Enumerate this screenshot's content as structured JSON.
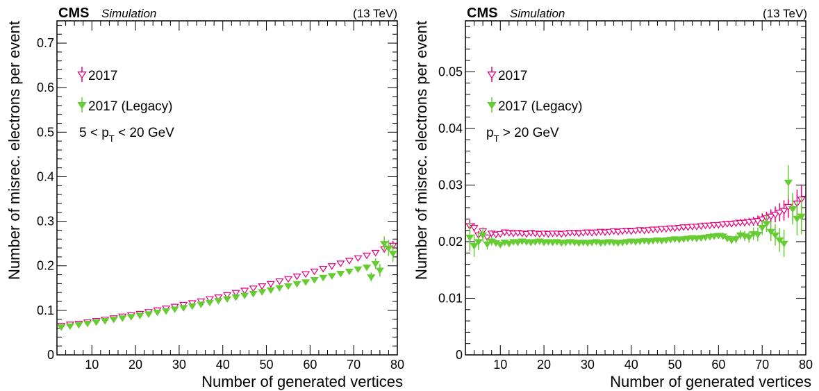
{
  "chart_data": [
    {
      "type": "scatter",
      "experiment": "CMS",
      "label": "Simulation",
      "energy": "(13 TeV)",
      "xlabel": "Number of generated vertices",
      "ylabel": "Number of misrec. electrons per event",
      "xlim": [
        2,
        80
      ],
      "ylim": [
        0,
        0.75
      ],
      "xticks": [
        10,
        20,
        30,
        40,
        50,
        60,
        70,
        80
      ],
      "yticks": [
        0,
        0.1,
        0.2,
        0.3,
        0.4,
        0.5,
        0.6,
        0.7
      ],
      "ytick_labels": [
        "0",
        "0.1",
        "0.2",
        "0.3",
        "0.4",
        "0.5",
        "0.6",
        "0.7"
      ],
      "region_label": {
        "pre": "5 < p",
        "sub": "T",
        "post": " < 20 GeV"
      },
      "legend": [
        "2017",
        "2017 (Legacy)"
      ],
      "series": [
        {
          "name": "2017",
          "marker": "open-triangle-down",
          "color": "#e6007e",
          "x": [
            3,
            5,
            7,
            9,
            11,
            13,
            15,
            17,
            19,
            21,
            23,
            25,
            27,
            29,
            31,
            33,
            35,
            37,
            39,
            41,
            43,
            45,
            47,
            49,
            51,
            53,
            55,
            57,
            59,
            61,
            63,
            65,
            67,
            69,
            71,
            73,
            75,
            77,
            79
          ],
          "y": [
            0.066,
            0.069,
            0.071,
            0.074,
            0.077,
            0.08,
            0.083,
            0.087,
            0.09,
            0.093,
            0.097,
            0.101,
            0.105,
            0.109,
            0.113,
            0.117,
            0.121,
            0.126,
            0.13,
            0.135,
            0.14,
            0.145,
            0.15,
            0.155,
            0.16,
            0.166,
            0.171,
            0.177,
            0.182,
            0.188,
            0.194,
            0.2,
            0.206,
            0.212,
            0.218,
            0.224,
            0.23,
            0.238,
            0.246
          ],
          "err": [
            0.002,
            0.001,
            0.001,
            0.001,
            0.001,
            0.001,
            0.001,
            0.001,
            0.001,
            0.001,
            0.001,
            0.001,
            0.001,
            0.001,
            0.001,
            0.001,
            0.001,
            0.001,
            0.001,
            0.001,
            0.001,
            0.001,
            0.001,
            0.001,
            0.001,
            0.001,
            0.001,
            0.001,
            0.001,
            0.002,
            0.002,
            0.002,
            0.002,
            0.003,
            0.003,
            0.004,
            0.005,
            0.007,
            0.01
          ]
        },
        {
          "name": "2017 (Legacy)",
          "marker": "filled-triangle-down",
          "color": "#66cc33",
          "x": [
            3,
            5,
            7,
            9,
            11,
            13,
            15,
            17,
            19,
            21,
            23,
            25,
            27,
            29,
            31,
            33,
            35,
            37,
            39,
            41,
            43,
            45,
            47,
            49,
            51,
            53,
            55,
            57,
            59,
            61,
            63,
            65,
            67,
            69,
            71,
            73,
            74,
            75,
            76,
            77,
            78,
            79
          ],
          "y": [
            0.063,
            0.065,
            0.068,
            0.071,
            0.074,
            0.077,
            0.08,
            0.083,
            0.086,
            0.089,
            0.092,
            0.096,
            0.099,
            0.103,
            0.106,
            0.11,
            0.114,
            0.118,
            0.122,
            0.126,
            0.13,
            0.134,
            0.138,
            0.142,
            0.146,
            0.151,
            0.155,
            0.16,
            0.164,
            0.169,
            0.174,
            0.178,
            0.183,
            0.188,
            0.193,
            0.197,
            0.175,
            0.205,
            0.19,
            0.25,
            0.24,
            0.228
          ],
          "err": [
            0.003,
            0.002,
            0.002,
            0.001,
            0.001,
            0.001,
            0.001,
            0.001,
            0.001,
            0.001,
            0.001,
            0.001,
            0.001,
            0.001,
            0.001,
            0.001,
            0.001,
            0.001,
            0.001,
            0.001,
            0.001,
            0.001,
            0.001,
            0.001,
            0.001,
            0.002,
            0.002,
            0.002,
            0.002,
            0.002,
            0.003,
            0.003,
            0.003,
            0.004,
            0.005,
            0.006,
            0.01,
            0.012,
            0.014,
            0.016,
            0.018,
            0.02
          ]
        }
      ]
    },
    {
      "type": "scatter",
      "experiment": "CMS",
      "label": "Simulation",
      "energy": "(13 TeV)",
      "xlabel": "Number of generated vertices",
      "ylabel": "Number of misrec. electrons per event",
      "xlim": [
        2,
        80
      ],
      "ylim": [
        0,
        0.059
      ],
      "xticks": [
        10,
        20,
        30,
        40,
        50,
        60,
        70,
        80
      ],
      "yticks": [
        0,
        0.01,
        0.02,
        0.03,
        0.04,
        0.05
      ],
      "ytick_labels": [
        "0",
        "0.01",
        "0.02",
        "0.03",
        "0.04",
        "0.05"
      ],
      "region_label": {
        "pre": "p",
        "sub": "T",
        "post": " > 20 GeV"
      },
      "legend": [
        "2017",
        "2017 (Legacy)"
      ],
      "series": [
        {
          "name": "2017",
          "marker": "open-triangle-down",
          "color": "#e6007e",
          "x": [
            3,
            4,
            5,
            6,
            7,
            8,
            9,
            10,
            11,
            12,
            13,
            14,
            15,
            16,
            17,
            18,
            19,
            20,
            21,
            22,
            23,
            24,
            25,
            26,
            27,
            28,
            29,
            30,
            31,
            32,
            33,
            34,
            35,
            36,
            37,
            38,
            39,
            40,
            41,
            42,
            43,
            44,
            45,
            46,
            47,
            48,
            49,
            50,
            51,
            52,
            53,
            54,
            55,
            56,
            57,
            58,
            59,
            60,
            61,
            62,
            63,
            64,
            65,
            66,
            67,
            68,
            69,
            70,
            71,
            72,
            73,
            74,
            75,
            76,
            77,
            78,
            79
          ],
          "y": [
            0.0228,
            0.0225,
            0.0212,
            0.0219,
            0.0208,
            0.0215,
            0.0213,
            0.0214,
            0.0217,
            0.0216,
            0.0215,
            0.0216,
            0.0215,
            0.0214,
            0.0216,
            0.0215,
            0.0214,
            0.0215,
            0.0214,
            0.0215,
            0.0215,
            0.0214,
            0.0215,
            0.0216,
            0.0216,
            0.0215,
            0.0216,
            0.0217,
            0.0216,
            0.0217,
            0.0218,
            0.0217,
            0.0218,
            0.0219,
            0.0218,
            0.0219,
            0.022,
            0.0219,
            0.022,
            0.0221,
            0.022,
            0.0221,
            0.0222,
            0.0222,
            0.0223,
            0.0223,
            0.0224,
            0.0224,
            0.0225,
            0.0226,
            0.0226,
            0.0227,
            0.0227,
            0.0228,
            0.0229,
            0.0229,
            0.023,
            0.023,
            0.0231,
            0.0232,
            0.0232,
            0.0233,
            0.0234,
            0.0234,
            0.0235,
            0.0236,
            0.0237,
            0.024,
            0.0242,
            0.0245,
            0.0248,
            0.0252,
            0.0255,
            0.0262,
            0.0258,
            0.0268,
            0.0275
          ],
          "err": [
            0.001,
            0.0008,
            0.0007,
            0.0006,
            0.0005,
            0.0005,
            0.0004,
            0.0004,
            0.0003,
            0.0003,
            0.0003,
            0.0003,
            0.0003,
            0.0003,
            0.0003,
            0.0003,
            0.0003,
            0.0003,
            0.0003,
            0.0003,
            0.0003,
            0.0003,
            0.0003,
            0.0003,
            0.0003,
            0.0003,
            0.0003,
            0.0003,
            0.0003,
            0.0003,
            0.0003,
            0.0003,
            0.0003,
            0.0003,
            0.0003,
            0.0003,
            0.0003,
            0.0003,
            0.0003,
            0.0003,
            0.0003,
            0.0003,
            0.0003,
            0.0003,
            0.0003,
            0.0003,
            0.0003,
            0.0003,
            0.0003,
            0.0003,
            0.0003,
            0.0003,
            0.0003,
            0.0003,
            0.0004,
            0.0004,
            0.0004,
            0.0004,
            0.0005,
            0.0005,
            0.0005,
            0.0006,
            0.0006,
            0.0007,
            0.0007,
            0.0008,
            0.0009,
            0.001,
            0.0011,
            0.0012,
            0.0014,
            0.0016,
            0.0018,
            0.002,
            0.0022,
            0.0024,
            0.0026
          ]
        },
        {
          "name": "2017 (Legacy)",
          "marker": "filled-triangle-down",
          "color": "#66cc33",
          "x": [
            3,
            4,
            5,
            6,
            7,
            8,
            9,
            10,
            11,
            12,
            13,
            14,
            15,
            16,
            17,
            18,
            19,
            20,
            21,
            22,
            23,
            24,
            25,
            26,
            27,
            28,
            29,
            30,
            31,
            32,
            33,
            34,
            35,
            36,
            37,
            38,
            39,
            40,
            41,
            42,
            43,
            44,
            45,
            46,
            47,
            48,
            49,
            50,
            51,
            52,
            53,
            54,
            55,
            56,
            57,
            58,
            59,
            60,
            61,
            62,
            63,
            64,
            65,
            66,
            67,
            68,
            69,
            70,
            71,
            72,
            73,
            74,
            75,
            76,
            77,
            78,
            79
          ],
          "y": [
            0.0208,
            0.0193,
            0.02,
            0.0212,
            0.0196,
            0.0201,
            0.0198,
            0.0195,
            0.0199,
            0.0197,
            0.02,
            0.0199,
            0.0201,
            0.02,
            0.0199,
            0.02,
            0.0201,
            0.0199,
            0.02,
            0.0199,
            0.02,
            0.0198,
            0.0199,
            0.02,
            0.0199,
            0.0198,
            0.0199,
            0.0198,
            0.0199,
            0.02,
            0.0198,
            0.0199,
            0.02,
            0.0199,
            0.0198,
            0.0199,
            0.02,
            0.0201,
            0.02,
            0.0201,
            0.0202,
            0.0201,
            0.0202,
            0.0203,
            0.0202,
            0.0203,
            0.0204,
            0.0205,
            0.0204,
            0.0205,
            0.0206,
            0.0207,
            0.0206,
            0.0207,
            0.0208,
            0.0209,
            0.021,
            0.0211,
            0.021,
            0.0206,
            0.0203,
            0.0205,
            0.0212,
            0.021,
            0.0208,
            0.0214,
            0.0213,
            0.0225,
            0.0232,
            0.0218,
            0.0212,
            0.0203,
            0.0197,
            0.0305,
            0.0258,
            0.0241,
            0.0245
          ],
          "err": [
            0.0025,
            0.002,
            0.0015,
            0.0012,
            0.001,
            0.0008,
            0.0006,
            0.0005,
            0.0004,
            0.0004,
            0.0003,
            0.0003,
            0.0003,
            0.0003,
            0.0003,
            0.0003,
            0.0003,
            0.0003,
            0.0003,
            0.0003,
            0.0003,
            0.0003,
            0.0003,
            0.0003,
            0.0003,
            0.0003,
            0.0003,
            0.0003,
            0.0003,
            0.0003,
            0.0003,
            0.0003,
            0.0003,
            0.0003,
            0.0003,
            0.0003,
            0.0003,
            0.0003,
            0.0003,
            0.0003,
            0.0003,
            0.0003,
            0.0003,
            0.0003,
            0.0003,
            0.0003,
            0.0003,
            0.0003,
            0.0003,
            0.0003,
            0.0003,
            0.0004,
            0.0004,
            0.0004,
            0.0004,
            0.0005,
            0.0005,
            0.0005,
            0.0006,
            0.0006,
            0.0007,
            0.0008,
            0.0008,
            0.0009,
            0.001,
            0.0011,
            0.0012,
            0.0013,
            0.0015,
            0.0017,
            0.0019,
            0.0021,
            0.0024,
            0.003,
            0.0028,
            0.003,
            0.0032
          ]
        }
      ]
    }
  ]
}
